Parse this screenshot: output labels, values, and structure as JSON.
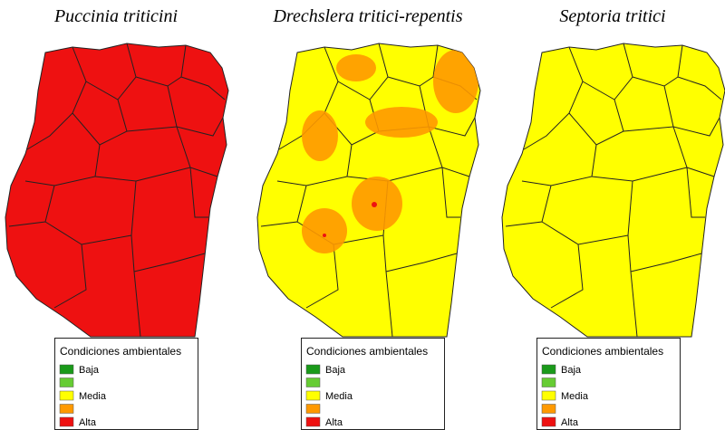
{
  "maps": [
    {
      "title": "Puccinia triticini",
      "fill": "#ee1111",
      "legend": {
        "title": "Condiciones ambientales",
        "items": [
          {
            "color": "#1a9a1a",
            "label": "Baja"
          },
          {
            "color": "#66cc33"
          },
          {
            "color": "#ffff00",
            "label": "Media"
          },
          {
            "color": "#ff9900"
          },
          {
            "color": "#ee1111",
            "label": "Alta"
          }
        ]
      }
    },
    {
      "title": "Drechslera tritici-repentis",
      "fill": "#ffff00",
      "legend": {
        "title": "Condiciones ambientales",
        "items": [
          {
            "color": "#1a9a1a",
            "label": "Baja"
          },
          {
            "color": "#66cc33"
          },
          {
            "color": "#ffff00",
            "label": "Media"
          },
          {
            "color": "#ff9900"
          },
          {
            "color": "#ee1111",
            "label": "Alta"
          }
        ]
      }
    },
    {
      "title": "Septoria tritici",
      "fill": "#ffff00",
      "legend": {
        "title": "Condiciones ambientales",
        "items": [
          {
            "color": "#1a9a1a",
            "label": "Baja"
          },
          {
            "color": "#66cc33"
          },
          {
            "color": "#ffff00",
            "label": "Media"
          },
          {
            "color": "#ff9900"
          },
          {
            "color": "#ee1111",
            "label": "Alta"
          }
        ]
      }
    }
  ]
}
